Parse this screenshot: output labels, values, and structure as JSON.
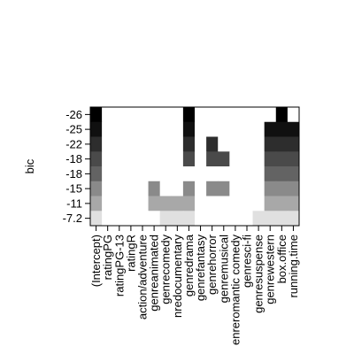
{
  "chart_data": {
    "type": "heatmap",
    "title": "",
    "ylabel": "bic",
    "xlabel": "",
    "columns": [
      "(Intercept)",
      "ratingPG",
      "ratingPG-13",
      "ratingR",
      "action/adventure",
      "genreanimated",
      "genrecomedy",
      "genredocumentary",
      "genredrama",
      "genrefantasy",
      "genrehorror",
      "genremusical",
      "genreromantic comedy",
      "genresci-fi",
      "genresuspense",
      "genrewestern",
      "box.office",
      "running.time"
    ],
    "column_labels": [
      "(Intercept)",
      "ratingPG",
      "ratingPG-13",
      "ratingR",
      "action/adventure",
      "genreanimated",
      "genrecomedy",
      "nredocumentary",
      "genredrama",
      "genrefantasy",
      "genrehorror",
      "genremusical",
      "enreromantic comedy",
      "genresci-fi",
      "genresuspense",
      "genrewestern",
      "box.office",
      "running.time"
    ],
    "rows": [
      {
        "label": "-26",
        "included": [
          "(Intercept)",
          "genredrama",
          "box.office"
        ]
      },
      {
        "label": "-25",
        "included": [
          "(Intercept)",
          "genredrama",
          "genrewestern",
          "box.office",
          "running.time"
        ]
      },
      {
        "label": "-22",
        "included": [
          "(Intercept)",
          "genredrama",
          "genrehorror",
          "genrewestern",
          "box.office",
          "running.time"
        ]
      },
      {
        "label": "-18",
        "included": [
          "(Intercept)",
          "genredrama",
          "genrehorror",
          "genremusical",
          "genrewestern",
          "box.office",
          "running.time"
        ]
      },
      {
        "label": "-18",
        "included": [
          "(Intercept)",
          "genrewestern",
          "box.office",
          "running.time"
        ]
      },
      {
        "label": "-15",
        "included": [
          "(Intercept)",
          "genreanimated",
          "genredrama",
          "genrehorror",
          "genremusical",
          "genrewestern",
          "box.office",
          "running.time"
        ]
      },
      {
        "label": "-11",
        "included": [
          "(Intercept)",
          "genreanimated",
          "genrecomedy",
          "genredocumentary",
          "genredrama",
          "genrewestern",
          "box.office",
          "running.time"
        ]
      },
      {
        "label": "-7.2",
        "included": [
          "(Intercept)",
          "genrecomedy",
          "genredocumentary",
          "genredrama",
          "genresuspense",
          "genrewestern",
          "box.office",
          "running.time"
        ]
      }
    ],
    "row_shades": [
      "#000000",
      "#101010",
      "#2d2d2d",
      "#4a4a4a",
      "#636363",
      "#8a8a8a",
      "#a8a8a8",
      "#e0e0e0"
    ],
    "empty_color": "#ffffff",
    "grid": false
  }
}
